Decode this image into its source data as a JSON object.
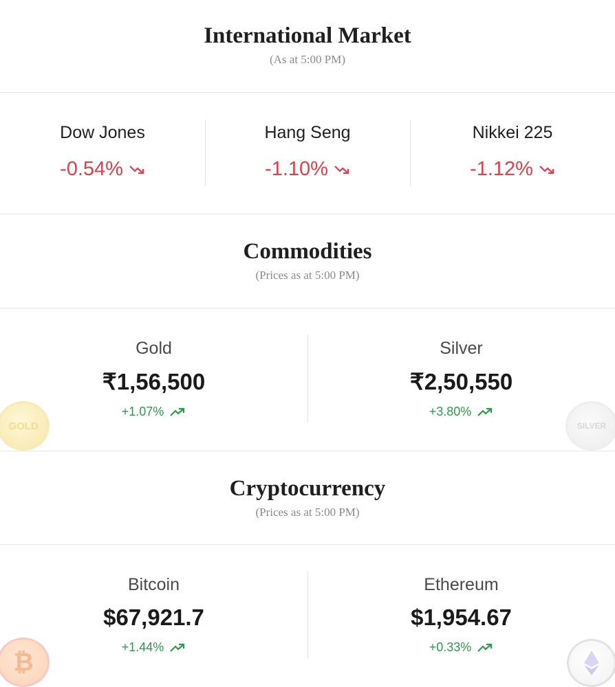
{
  "international": {
    "title": "International Market",
    "subtitle": "(As at 5:00 PM)",
    "indices": [
      {
        "name": "Dow Jones",
        "change": "-0.54%",
        "trend": "down"
      },
      {
        "name": "Hang Seng",
        "change": "-1.10%",
        "trend": "down"
      },
      {
        "name": "Nikkei 225",
        "change": "-1.12%",
        "trend": "down"
      }
    ]
  },
  "commodities": {
    "title": "Commodities",
    "subtitle": "(Prices as at 5:00 PM)",
    "items": [
      {
        "name": "Gold",
        "price": "₹1,56,500",
        "change": "+1.07%",
        "trend": "up",
        "coin_label": "GOLD"
      },
      {
        "name": "Silver",
        "price": "₹2,50,550",
        "change": "+3.80%",
        "trend": "up",
        "coin_label": "SILVER"
      }
    ]
  },
  "crypto": {
    "title": "Cryptocurrency",
    "subtitle": "(Prices as at 5:00 PM)",
    "items": [
      {
        "name": "Bitcoin",
        "price": "$67,921.7",
        "change": "+1.44%",
        "trend": "up",
        "coin_label": "₿"
      },
      {
        "name": "Ethereum",
        "price": "$1,954.67",
        "change": "+0.33%",
        "trend": "up",
        "coin_label": "ethereum-icon"
      }
    ]
  },
  "colors": {
    "down": "#e0404a",
    "up": "#2e9a4a",
    "divider": "#e6e6e6"
  }
}
